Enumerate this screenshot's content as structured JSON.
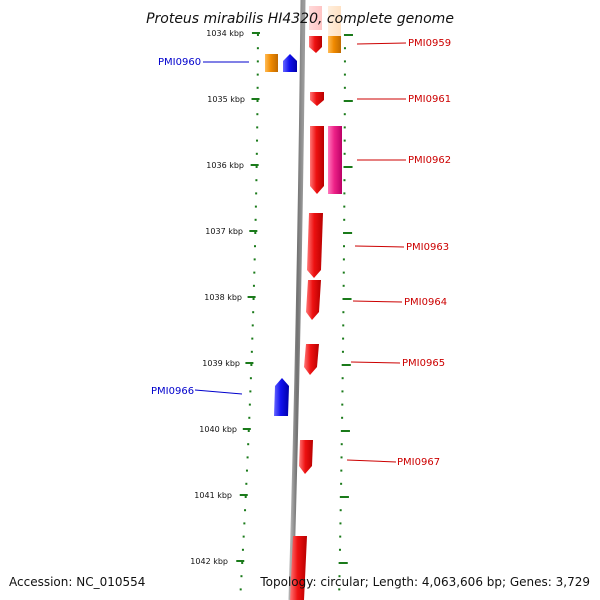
{
  "title": "Proteus mirabilis HI4320, complete genome",
  "footer": {
    "accession": "Accession: NC_010554",
    "summary": "Topology: circular; Length: 4,063,606 bp; Genes: 3,729"
  },
  "scale_labels": [
    "1034 kbp",
    "1035 kbp",
    "1036 kbp",
    "1037 kbp",
    "1038 kbp",
    "1039 kbp",
    "1040 kbp",
    "1041 kbp",
    "1042 kbp"
  ],
  "colors": {
    "forward_cds": "#ee1111",
    "reverse_cds": "#1111ee",
    "orange_feature": "#f08a00",
    "pink_feature": "#ee2288",
    "backbone": "#808080",
    "tick": "#1a7a1a",
    "label_forward": "#cc0000",
    "label_reverse": "#0000cc"
  },
  "gene_labels": [
    "PMI0959",
    "PMI0960",
    "PMI0961",
    "PMI0962",
    "PMI0963",
    "PMI0964",
    "PMI0965",
    "PMI0966",
    "PMI0967"
  ]
}
